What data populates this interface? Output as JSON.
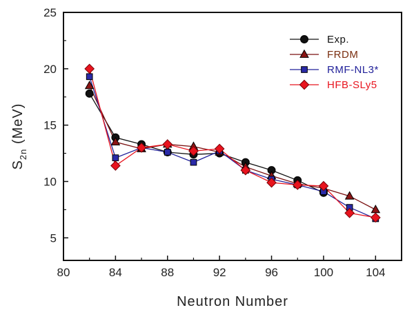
{
  "chart_data": {
    "type": "line",
    "title": "",
    "xlabel": "Neutron Number",
    "ylabel_main": "S",
    "ylabel_sub": "2n",
    "ylabel_unit": " (MeV)",
    "xlim": [
      80,
      106
    ],
    "ylim": [
      3,
      25
    ],
    "xticks": [
      80,
      84,
      88,
      92,
      96,
      100,
      104
    ],
    "xticklabels": [
      "80",
      "84",
      "88",
      "92",
      "96",
      "100",
      "104"
    ],
    "yticks": [
      5,
      10,
      15,
      20,
      25
    ],
    "yticklabels": [
      "5",
      "10",
      "15",
      "20",
      "25"
    ],
    "grid": false,
    "legend_position": "top-right",
    "series": [
      {
        "name": "Exp.",
        "marker": "circle",
        "color": "#111111",
        "fill": "#111111",
        "label_color": "#111111",
        "x": [
          82,
          84,
          86,
          88,
          90,
          92,
          94,
          96,
          98,
          100
        ],
        "y": [
          17.8,
          13.9,
          13.3,
          12.6,
          12.4,
          12.5,
          11.7,
          11.0,
          10.1,
          9.0
        ]
      },
      {
        "name": "FRDM",
        "marker": "triangle",
        "color": "#7a1010",
        "fill": "#8b1515",
        "label_color": "#7a2e0f",
        "x": [
          82,
          84,
          86,
          88,
          90,
          92,
          94,
          96,
          98,
          100,
          102,
          104
        ],
        "y": [
          18.5,
          13.5,
          12.9,
          13.3,
          13.1,
          12.6,
          11.3,
          10.5,
          9.8,
          9.4,
          8.7,
          7.5
        ]
      },
      {
        "name": "RMF-NL3*",
        "marker": "square",
        "color": "#22229a",
        "fill": "#2a2aa8",
        "label_color": "#22229a",
        "x": [
          82,
          84,
          86,
          88,
          90,
          92,
          94,
          96,
          98,
          100,
          102,
          104
        ],
        "y": [
          19.3,
          12.1,
          13.0,
          12.6,
          11.7,
          12.7,
          11.0,
          10.2,
          9.7,
          9.1,
          7.7,
          6.7
        ]
      },
      {
        "name": "HFB-SLy5",
        "marker": "diamond",
        "color": "#e8141e",
        "fill": "#e8141e",
        "label_color": "#e8141e",
        "x": [
          82,
          84,
          86,
          88,
          90,
          92,
          94,
          96,
          98,
          100,
          102,
          104
        ],
        "y": [
          20.0,
          11.4,
          13.0,
          13.3,
          12.7,
          12.9,
          11.0,
          9.9,
          9.7,
          9.6,
          7.2,
          6.8
        ]
      }
    ]
  }
}
